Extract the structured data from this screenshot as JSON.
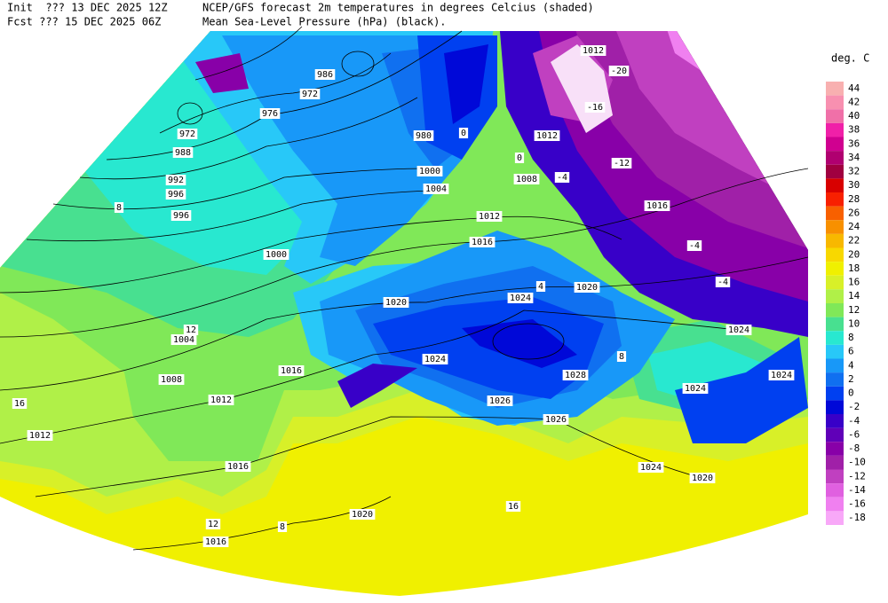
{
  "header": {
    "init": "Init  ??? 13 DEC 2025 12Z",
    "fcst": "Fcst ??? 15 DEC 2025 06Z",
    "title": "NCEP/GFS forecast 2m temperatures in degrees Celcius (shaded)",
    "subtitle": "Mean Sea-Level Pressure (hPa) (black)."
  },
  "legend": {
    "unit": "deg. C",
    "levels": [
      44,
      42,
      40,
      38,
      36,
      34,
      32,
      30,
      28,
      26,
      24,
      22,
      20,
      18,
      16,
      14,
      12,
      10,
      8,
      6,
      4,
      2,
      0,
      -2,
      -4,
      -6,
      -8,
      -10,
      -12,
      -14,
      -16,
      -18
    ],
    "colors": [
      "#f8b0b0",
      "#f890b0",
      "#f070a8",
      "#f020a8",
      "#d00090",
      "#b00070",
      "#a00040",
      "#d80000",
      "#f82000",
      "#f86000",
      "#f89000",
      "#f8b800",
      "#f8d800",
      "#f0f000",
      "#d8f028",
      "#b0f048",
      "#80e858",
      "#48e090",
      "#28e8d0",
      "#28c8f8",
      "#1898f8",
      "#1070f0",
      "#0040f0",
      "#0008d8",
      "#3800c8",
      "#6000b8",
      "#8800a8",
      "#a020a8",
      "#c040c0",
      "#e060e0",
      "#f080f0",
      "#f8a8f8"
    ]
  },
  "map": {
    "isobar_labels": [
      1012,
      986,
      972,
      976,
      972,
      980,
      988,
      992,
      996,
      996,
      1000,
      1004,
      1012,
      1008,
      1012,
      1016,
      1016,
      1020,
      1024,
      1020,
      1000,
      1004,
      1008,
      1012,
      1012,
      1016,
      1024,
      1028,
      1026,
      1026,
      1024,
      1020,
      1024,
      1024,
      1024,
      1016,
      1016,
      1020
    ],
    "temperature_labels": [
      -20,
      -16,
      -12,
      -4,
      -4,
      -4,
      8,
      8,
      12,
      16,
      16,
      12,
      8,
      0,
      0,
      4
    ]
  }
}
